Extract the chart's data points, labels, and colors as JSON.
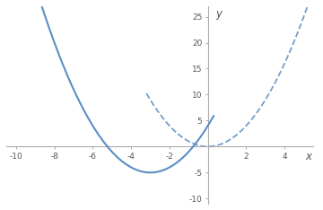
{
  "xlim": [
    -10.5,
    5.5
  ],
  "ylim": [
    -11,
    27
  ],
  "xticks": [
    -10,
    -8,
    -6,
    -4,
    -2,
    2,
    4
  ],
  "yticks": [
    -10,
    -5,
    5,
    10,
    15,
    20,
    25
  ],
  "curve_color": "#5b8ec4",
  "xlabel": "x",
  "ylabel": "y",
  "figsize": [
    3.6,
    2.34
  ],
  "dpi": 100,
  "x_solid_min": -10.0,
  "x_solid_max": 0.3,
  "x_dashed_min": -3.2,
  "x_dashed_max": 5.5
}
